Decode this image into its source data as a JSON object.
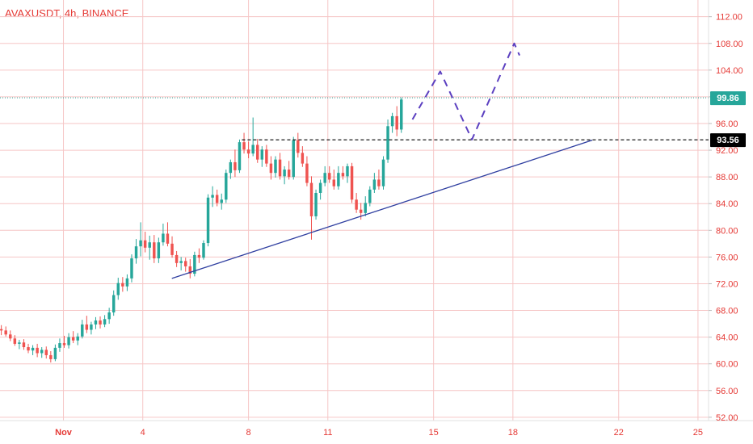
{
  "header": {
    "symbol_title": "AVAXUSDT, 4h, BINANCE"
  },
  "colors": {
    "up": "#26a69a",
    "down": "#ef5350",
    "grid": "#f6c6c6",
    "axis_text": "#e53935",
    "trendline": "#2f3fa0",
    "projection": "#5b3fc0",
    "last_price_badge": "#26a69a",
    "level_badge": "#000000"
  },
  "chart_data": {
    "type": "candlestick",
    "symbol": "AVAXUSDT",
    "timeframe": "4h",
    "exchange": "BINANCE",
    "y_ticks": [
      "112.00",
      "108.00",
      "104.00",
      "100.00",
      "96.00",
      "92.00",
      "88.00",
      "84.00",
      "80.00",
      "76.00",
      "72.00",
      "68.00",
      "64.00",
      "60.00",
      "56.00",
      "52.00"
    ],
    "x_ticks": [
      {
        "day": 1,
        "label": "Nov"
      },
      {
        "day": 4,
        "label": "4"
      },
      {
        "day": 8,
        "label": "8"
      },
      {
        "day": 11,
        "label": "11"
      },
      {
        "day": 15,
        "label": "15"
      },
      {
        "day": 18,
        "label": "18"
      },
      {
        "day": 22,
        "label": "22"
      },
      {
        "day": 25,
        "label": "25"
      }
    ],
    "ylim": [
      51.5,
      114.5
    ],
    "xlim_day": [
      -1.4,
      25.4
    ],
    "last_price": {
      "label": "99.86",
      "value": 99.86
    },
    "horizontal_level": {
      "label": "93.56",
      "value": 93.56
    },
    "trendline": [
      {
        "day": 5.1,
        "price": 72.8
      },
      {
        "day": 21.0,
        "price": 93.5
      }
    ],
    "projection": [
      {
        "day": 14.2,
        "price": 96.6
      },
      {
        "day": 15.25,
        "price": 103.8
      },
      {
        "day": 16.45,
        "price": 93.6
      },
      {
        "day": 18.05,
        "price": 108.0
      },
      {
        "day": 18.25,
        "price": 106.2
      }
    ],
    "candles": [
      [
        -1.35,
        65.2,
        65.8,
        64.3,
        65.0
      ],
      [
        -1.18,
        65.0,
        65.6,
        64.1,
        64.4
      ],
      [
        -1.01,
        64.4,
        65.0,
        63.4,
        63.8
      ],
      [
        -0.84,
        63.8,
        64.3,
        62.7,
        63.0
      ],
      [
        -0.67,
        63.0,
        63.6,
        62.2,
        63.2
      ],
      [
        -0.5,
        63.2,
        63.7,
        62.1,
        62.5
      ],
      [
        -0.33,
        62.5,
        63.0,
        61.6,
        62.0
      ],
      [
        -0.16,
        62.0,
        62.8,
        61.3,
        62.4
      ],
      [
        0.01,
        62.4,
        63.0,
        61.0,
        61.6
      ],
      [
        0.18,
        61.6,
        62.5,
        60.9,
        62.1
      ],
      [
        0.35,
        62.1,
        62.6,
        60.8,
        61.3
      ],
      [
        0.52,
        61.3,
        61.9,
        60.2,
        60.7
      ],
      [
        0.69,
        60.7,
        62.9,
        60.4,
        62.4
      ],
      [
        0.86,
        62.4,
        63.8,
        61.8,
        63.1
      ],
      [
        1.03,
        63.1,
        64.2,
        62.4,
        62.8
      ],
      [
        1.2,
        62.8,
        64.6,
        62.3,
        64.0
      ],
      [
        1.37,
        64.0,
        64.9,
        63.1,
        63.5
      ],
      [
        1.54,
        63.5,
        64.6,
        62.8,
        64.1
      ],
      [
        1.71,
        64.1,
        66.6,
        63.8,
        65.9
      ],
      [
        1.88,
        65.9,
        67.2,
        64.6,
        65.1
      ],
      [
        2.05,
        65.1,
        66.3,
        64.4,
        65.9
      ],
      [
        2.22,
        65.9,
        67.0,
        65.2,
        66.5
      ],
      [
        2.39,
        66.5,
        67.1,
        65.3,
        65.9
      ],
      [
        2.56,
        65.9,
        67.3,
        65.5,
        66.7
      ],
      [
        2.73,
        66.7,
        68.4,
        66.0,
        67.7
      ],
      [
        2.9,
        67.7,
        71.0,
        67.2,
        70.3
      ],
      [
        3.07,
        70.3,
        72.9,
        69.6,
        72.1
      ],
      [
        3.24,
        72.1,
        73.0,
        70.8,
        71.6
      ],
      [
        3.41,
        71.6,
        73.4,
        70.9,
        72.8
      ],
      [
        3.58,
        72.8,
        76.4,
        72.2,
        75.8
      ],
      [
        3.75,
        75.8,
        78.7,
        75.0,
        77.6
      ],
      [
        3.92,
        77.6,
        81.2,
        76.1,
        78.5
      ],
      [
        4.09,
        78.5,
        79.8,
        76.7,
        77.4
      ],
      [
        4.26,
        77.4,
        79.2,
        75.6,
        78.2
      ],
      [
        4.43,
        78.2,
        79.3,
        75.1,
        75.8
      ],
      [
        4.6,
        75.8,
        78.9,
        75.1,
        78.2
      ],
      [
        4.77,
        78.2,
        81.0,
        77.7,
        79.5
      ],
      [
        4.94,
        79.5,
        81.2,
        77.6,
        78.0
      ],
      [
        5.11,
        78.0,
        79.1,
        75.9,
        76.3
      ],
      [
        5.28,
        76.3,
        76.9,
        74.5,
        75.1
      ],
      [
        5.45,
        75.1,
        76.0,
        74.0,
        75.4
      ],
      [
        5.62,
        75.4,
        75.9,
        73.8,
        74.6
      ],
      [
        5.79,
        74.6,
        75.7,
        72.8,
        73.5
      ],
      [
        5.96,
        73.5,
        76.8,
        73.1,
        76.3
      ],
      [
        6.13,
        76.3,
        77.3,
        75.1,
        75.9
      ],
      [
        6.3,
        75.9,
        78.5,
        75.6,
        78.1
      ],
      [
        6.47,
        78.1,
        85.4,
        77.6,
        84.9
      ],
      [
        6.64,
        84.9,
        86.6,
        83.5,
        85.3
      ],
      [
        6.81,
        85.3,
        86.1,
        83.6,
        84.1
      ],
      [
        6.98,
        84.1,
        85.5,
        83.1,
        84.6
      ],
      [
        7.15,
        84.6,
        89.1,
        84.1,
        88.6
      ],
      [
        7.32,
        88.6,
        90.6,
        87.7,
        90.2
      ],
      [
        7.49,
        90.2,
        92.1,
        88.0,
        89.0
      ],
      [
        7.66,
        89.0,
        93.6,
        88.6,
        93.2
      ],
      [
        7.83,
        93.2,
        94.6,
        91.5,
        92.1
      ],
      [
        8.0,
        92.1,
        93.3,
        90.8,
        91.5
      ],
      [
        8.17,
        91.5,
        96.9,
        91.1,
        92.8
      ],
      [
        8.34,
        92.8,
        93.7,
        90.1,
        90.6
      ],
      [
        8.51,
        90.6,
        92.6,
        89.5,
        92.1
      ],
      [
        8.68,
        92.1,
        92.8,
        89.5,
        90.0
      ],
      [
        8.85,
        90.0,
        91.1,
        87.6,
        88.6
      ],
      [
        9.02,
        88.6,
        91.1,
        87.9,
        90.6
      ],
      [
        9.19,
        90.6,
        91.6,
        87.6,
        88.1
      ],
      [
        9.36,
        88.1,
        89.6,
        86.9,
        89.1
      ],
      [
        9.53,
        89.1,
        90.4,
        87.6,
        88.0
      ],
      [
        9.7,
        88.0,
        94.0,
        87.6,
        93.5
      ],
      [
        9.87,
        93.5,
        94.6,
        90.9,
        91.6
      ],
      [
        10.04,
        91.6,
        92.6,
        89.5,
        90.0
      ],
      [
        10.21,
        90.0,
        91.1,
        86.6,
        87.1
      ],
      [
        10.38,
        87.1,
        88.1,
        78.6,
        82.1
      ],
      [
        10.55,
        82.1,
        86.1,
        81.6,
        85.6
      ],
      [
        10.72,
        85.6,
        87.6,
        84.6,
        87.1
      ],
      [
        10.89,
        87.1,
        89.6,
        86.6,
        88.6
      ],
      [
        11.06,
        88.6,
        89.6,
        87.1,
        87.6
      ],
      [
        11.23,
        87.6,
        89.1,
        86.1,
        86.6
      ],
      [
        11.4,
        86.6,
        89.6,
        86.1,
        88.6
      ],
      [
        11.57,
        88.6,
        89.6,
        87.6,
        88.1
      ],
      [
        11.74,
        88.1,
        90.0,
        87.1,
        89.6
      ],
      [
        11.91,
        89.6,
        90.1,
        84.1,
        84.6
      ],
      [
        12.08,
        84.6,
        85.6,
        82.6,
        83.1
      ],
      [
        12.25,
        83.1,
        84.1,
        81.6,
        82.6
      ],
      [
        12.42,
        82.6,
        85.1,
        82.1,
        84.1
      ],
      [
        12.59,
        84.1,
        86.6,
        83.6,
        86.1
      ],
      [
        12.76,
        86.1,
        88.6,
        85.6,
        87.6
      ],
      [
        12.93,
        87.6,
        89.1,
        86.1,
        86.6
      ],
      [
        13.1,
        86.6,
        91.1,
        86.1,
        90.6
      ],
      [
        13.27,
        90.6,
        96.6,
        90.1,
        95.6
      ],
      [
        13.44,
        95.6,
        97.6,
        94.6,
        97.1
      ],
      [
        13.61,
        97.1,
        98.6,
        94.1,
        95.1
      ],
      [
        13.78,
        95.1,
        99.9,
        94.6,
        99.6
      ]
    ]
  }
}
